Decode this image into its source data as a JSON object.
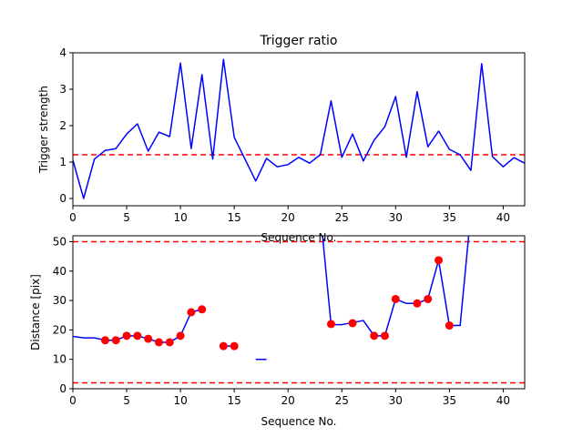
{
  "chart_data": [
    {
      "type": "line",
      "title": "Trigger ratio",
      "xlabel": "Sequence No.",
      "ylabel": "Trigger strength",
      "xlim": [
        0,
        42
      ],
      "ylim": [
        -0.2,
        4.0
      ],
      "xticks": [
        0,
        5,
        10,
        15,
        20,
        25,
        30,
        35,
        40
      ],
      "yticks": [
        0,
        1,
        2,
        3,
        4
      ],
      "grid": false,
      "series": [
        {
          "style": "line",
          "color": "#0000ff",
          "x": [
            0,
            1,
            2,
            3,
            4,
            5,
            6,
            7,
            8,
            9,
            10,
            11,
            12,
            13,
            14,
            15,
            16,
            17,
            18,
            19,
            20,
            21,
            22,
            23,
            24,
            25,
            26,
            27,
            28,
            29,
            30,
            31,
            32,
            33,
            34,
            35,
            36,
            37,
            38,
            39,
            40,
            41,
            42
          ],
          "y": [
            1.05,
            0.0,
            1.08,
            1.32,
            1.37,
            1.77,
            2.05,
            1.3,
            1.82,
            1.7,
            3.72,
            1.37,
            3.4,
            1.08,
            3.82,
            1.68,
            1.08,
            0.48,
            1.1,
            0.87,
            0.93,
            1.13,
            0.97,
            1.2,
            2.68,
            1.13,
            1.77,
            1.03,
            1.6,
            1.97,
            2.8,
            1.13,
            2.93,
            1.42,
            1.85,
            1.35,
            1.2,
            0.77,
            3.7,
            1.15,
            0.87,
            1.12,
            0.97
          ]
        }
      ],
      "hlines": [
        {
          "y": 1.2,
          "color": "#ff0000",
          "style": "dashed"
        }
      ]
    },
    {
      "type": "line",
      "title": "",
      "xlabel": "Sequence No.",
      "ylabel": "Distance [pix]",
      "xlim": [
        0,
        42
      ],
      "ylim": [
        0,
        52
      ],
      "xticks": [
        0,
        5,
        10,
        15,
        20,
        25,
        30,
        35,
        40
      ],
      "yticks": [
        0,
        10,
        20,
        30,
        40,
        50
      ],
      "grid": false,
      "series": [
        {
          "style": "line",
          "color": "#0000ff",
          "x": [
            0,
            1,
            2,
            3,
            4,
            5,
            6,
            7,
            8,
            9,
            10,
            11,
            12,
            13,
            14,
            15,
            16,
            17,
            18,
            19,
            20,
            21,
            22,
            23,
            24,
            25,
            26,
            27,
            28,
            29,
            30,
            31,
            32,
            33,
            34,
            35,
            36,
            37
          ],
          "y": [
            17.8,
            17.3,
            17.3,
            16.5,
            16.5,
            18.0,
            18.0,
            17.0,
            15.8,
            15.8,
            18.0,
            26.0,
            27.0,
            null,
            14.5,
            14.5,
            null,
            10.0,
            10.0,
            null,
            null,
            null,
            null,
            60,
            21.8,
            21.8,
            22.5,
            23.2,
            18.0,
            18.0,
            30.5,
            29.0,
            29.0,
            30.5,
            43.7,
            21.5,
            21.5,
            60
          ]
        },
        {
          "style": "markers",
          "color": "#ff0000",
          "x": [
            3,
            4,
            5,
            6,
            7,
            8,
            9,
            10,
            11,
            12,
            14,
            15,
            24,
            26,
            28,
            29,
            30,
            32,
            33,
            34,
            35
          ],
          "y": [
            16.5,
            16.5,
            18.0,
            18.0,
            17.0,
            15.8,
            15.8,
            18.0,
            26.0,
            27.0,
            14.5,
            14.5,
            22.0,
            22.3,
            18.0,
            18.0,
            30.5,
            29.0,
            30.5,
            43.7,
            21.5
          ]
        }
      ],
      "hlines": [
        {
          "y": 50,
          "color": "#ff0000",
          "style": "dashed"
        },
        {
          "y": 2,
          "color": "#ff0000",
          "style": "dashed"
        }
      ]
    }
  ]
}
